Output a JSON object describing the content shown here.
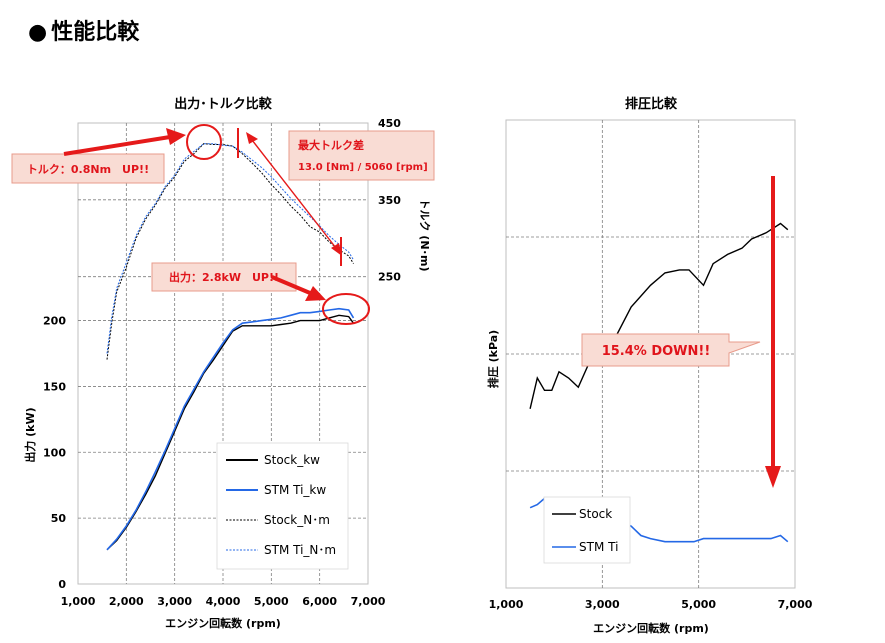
{
  "page": {
    "bullet": "●",
    "title": "性能比較"
  },
  "colors": {
    "stock": "#000000",
    "ti": "#2468e6",
    "accent": "#e51a1a",
    "callout_fill": "#f9dcd4",
    "callout_border": "#e89b8b"
  },
  "chart_data": [
    {
      "type": "line",
      "title": "出力･トルク比較",
      "xlabel": "エンジン回転数 (rpm)",
      "ylabel": "出力 (kW)",
      "y2label": "トルク (N･m)",
      "xlim": [
        1000,
        7000
      ],
      "ylim": [
        0,
        350
      ],
      "y2lim": [
        -150,
        450
      ],
      "x_ticks": [
        "1,000",
        "2,000",
        "3,000",
        "4,000",
        "5,000",
        "6,000",
        "7,000"
      ],
      "y_ticks": [
        "0",
        "50",
        "100",
        "150",
        "200"
      ],
      "y2_ticks": [
        "250",
        "350",
        "450"
      ],
      "grid": true,
      "legend_position": "bottom-right",
      "series": [
        {
          "name": "Stock_kw",
          "axis": "left",
          "style": "solid-black",
          "x": [
            1600,
            1800,
            2000,
            2200,
            2400,
            2600,
            2800,
            3000,
            3200,
            3400,
            3600,
            3800,
            4000,
            4200,
            4400,
            4600,
            4800,
            5000,
            5200,
            5400,
            5600,
            5800,
            6000,
            6200,
            6400,
            6600,
            6700
          ],
          "y": [
            26,
            33,
            43,
            55,
            68,
            82,
            99,
            116,
            133,
            146,
            160,
            170,
            181,
            192,
            196,
            196,
            196,
            196,
            197,
            198,
            200,
            200,
            200,
            202,
            204,
            203,
            198
          ]
        },
        {
          "name": "STM Ti_kw",
          "axis": "left",
          "style": "solid-blue",
          "x": [
            1600,
            1800,
            2000,
            2200,
            2400,
            2600,
            2800,
            3000,
            3200,
            3400,
            3600,
            3800,
            4000,
            4200,
            4400,
            4600,
            4800,
            5000,
            5200,
            5400,
            5600,
            5800,
            6000,
            6200,
            6400,
            6600,
            6700
          ],
          "y": [
            26,
            34,
            44,
            56,
            70,
            85,
            101,
            118,
            135,
            148,
            161,
            172,
            183,
            193,
            198,
            199,
            200,
            201,
            202,
            204,
            206,
            206,
            207,
            208,
            209,
            208,
            202
          ]
        },
        {
          "name": "Stock_N･m",
          "axis": "right",
          "style": "dotted-black",
          "x": [
            1600,
            1700,
            1800,
            2000,
            2200,
            2400,
            2600,
            2800,
            3000,
            3200,
            3400,
            3600,
            3800,
            4000,
            4200,
            4400,
            4600,
            4800,
            5000,
            5200,
            5400,
            5600,
            5800,
            6000,
            6200,
            6400,
            6600,
            6700
          ],
          "y": [
            142,
            190,
            230,
            262,
            300,
            325,
            343,
            365,
            380,
            400,
            410,
            423,
            422,
            422,
            420,
            410,
            398,
            385,
            370,
            357,
            342,
            330,
            315,
            308,
            295,
            285,
            277,
            267
          ]
        },
        {
          "name": "STM Ti_N･m",
          "axis": "right",
          "style": "dotted-blue",
          "x": [
            1600,
            1700,
            1800,
            2000,
            2200,
            2400,
            2600,
            2800,
            3000,
            3200,
            3400,
            3600,
            3800,
            4000,
            4200,
            4400,
            4600,
            4800,
            5000,
            5200,
            5400,
            5600,
            5800,
            6000,
            6200,
            6400,
            6600,
            6700
          ],
          "y": [
            150,
            198,
            235,
            268,
            303,
            328,
            345,
            367,
            382,
            403,
            413,
            423,
            423,
            421,
            420,
            412,
            402,
            392,
            380,
            366,
            352,
            340,
            328,
            316,
            303,
            292,
            282,
            272
          ]
        }
      ],
      "annotations": [
        {
          "text": "トルク：0.8Nm　UP!!"
        },
        {
          "text": "最大トルク差"
        },
        {
          "text": "13.0 [Nm] / 5060 [rpm]"
        },
        {
          "text": "出力：2.8kW　UP!!"
        }
      ]
    },
    {
      "type": "line",
      "title": "排圧比較",
      "xlabel": "エンジン回転数 (rpm)",
      "ylabel": "排圧 (kPa)",
      "xlim": [
        1000,
        7000
      ],
      "x_ticks": [
        "1,000",
        "3,000",
        "5,000",
        "7,000"
      ],
      "grid": true,
      "legend_position": "bottom-left",
      "series": [
        {
          "name": "Stock",
          "style": "solid-black",
          "x": [
            1500,
            1650,
            1800,
            1950,
            2100,
            2300,
            2500,
            2700,
            2900,
            3100,
            3300,
            3600,
            4000,
            4300,
            4600,
            4800,
            5100,
            5300,
            5600,
            5900,
            6100,
            6400,
            6700,
            6850
          ],
          "y": [
            0.58,
            0.68,
            0.64,
            0.64,
            0.7,
            0.68,
            0.65,
            0.72,
            0.74,
            0.78,
            0.82,
            0.91,
            0.98,
            1.02,
            1.03,
            1.03,
            0.98,
            1.05,
            1.08,
            1.1,
            1.13,
            1.15,
            1.18,
            1.16
          ]
        },
        {
          "name": "STM Ti",
          "style": "solid-blue",
          "x": [
            1500,
            1650,
            1800,
            1950,
            2100,
            2300,
            2500,
            2700,
            2900,
            3100,
            3300,
            3600,
            3800,
            4000,
            4300,
            4600,
            4900,
            5100,
            5300,
            5600,
            5900,
            6200,
            6500,
            6700,
            6850
          ],
          "y": [
            0.26,
            0.27,
            0.29,
            0.26,
            0.26,
            0.25,
            0.25,
            0.27,
            0.23,
            0.22,
            0.22,
            0.2,
            0.17,
            0.16,
            0.15,
            0.15,
            0.15,
            0.16,
            0.16,
            0.16,
            0.16,
            0.16,
            0.16,
            0.17,
            0.15
          ]
        }
      ],
      "annotations": [
        {
          "text": "15.4% DOWN!!"
        }
      ]
    }
  ]
}
